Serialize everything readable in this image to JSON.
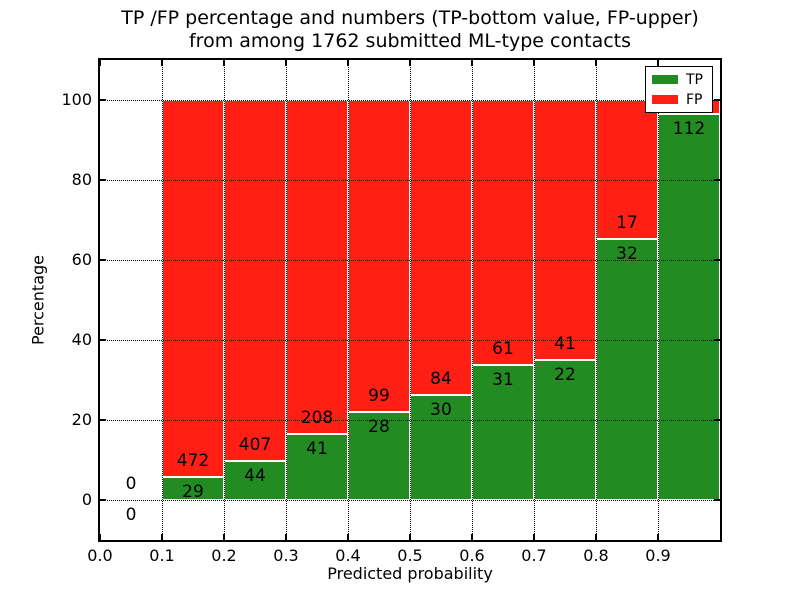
{
  "figure": {
    "background": "#ffffff",
    "text_color": "#000000"
  },
  "chart_data": {
    "type": "bar",
    "stacked": true,
    "title_line1": "TP /FP percentage and numbers (TP-bottom value, FP-upper)",
    "title_line2": "from among 1762 submitted ML-type contacts",
    "total_contacts": 1762,
    "xlabel": "Predicted probability",
    "ylabel": "Percentage",
    "xlim": [
      0.0,
      1.0
    ],
    "ylim": [
      -10,
      110
    ],
    "grid": true,
    "x_tick_labels": [
      "0.0",
      "0.1",
      "0.2",
      "0.3",
      "0.4",
      "0.5",
      "0.6",
      "0.7",
      "0.8",
      "0.9"
    ],
    "y_tick_labels": [
      "0",
      "20",
      "40",
      "60",
      "80",
      "100"
    ],
    "legend_position": "upper right",
    "series_colors": {
      "tp": "#228b22",
      "fp": "#ff1f14"
    },
    "legend": [
      {
        "key": "tp",
        "label": "TP"
      },
      {
        "key": "fp",
        "label": "FP"
      }
    ],
    "bins": [
      {
        "range": [
          0.0,
          0.1
        ],
        "has_bar": false,
        "tp_count": 0,
        "fp_count": 0,
        "tp_label": "0",
        "fp_label": "0",
        "tp_pct": 0.0,
        "fp_pct": 0.0
      },
      {
        "range": [
          0.1,
          0.2
        ],
        "has_bar": true,
        "tp_count": 29,
        "fp_count": 472,
        "tp_label": "29",
        "fp_label": "472",
        "tp_pct": 5.79,
        "fp_pct": 94.21
      },
      {
        "range": [
          0.2,
          0.3
        ],
        "has_bar": true,
        "tp_count": 44,
        "fp_count": 407,
        "tp_label": "44",
        "fp_label": "407",
        "tp_pct": 9.76,
        "fp_pct": 90.24
      },
      {
        "range": [
          0.3,
          0.4
        ],
        "has_bar": true,
        "tp_count": 41,
        "fp_count": 208,
        "tp_label": "41",
        "fp_label": "208",
        "tp_pct": 16.47,
        "fp_pct": 83.53
      },
      {
        "range": [
          0.4,
          0.5
        ],
        "has_bar": true,
        "tp_count": 28,
        "fp_count": 99,
        "tp_label": "28",
        "fp_label": "99",
        "tp_pct": 22.05,
        "fp_pct": 77.95
      },
      {
        "range": [
          0.5,
          0.6
        ],
        "has_bar": true,
        "tp_count": 30,
        "fp_count": 84,
        "tp_label": "30",
        "fp_label": "84",
        "tp_pct": 26.32,
        "fp_pct": 73.68
      },
      {
        "range": [
          0.6,
          0.7
        ],
        "has_bar": true,
        "tp_count": 31,
        "fp_count": 61,
        "tp_label": "31",
        "fp_label": "61",
        "tp_pct": 33.7,
        "fp_pct": 66.3
      },
      {
        "range": [
          0.7,
          0.8
        ],
        "has_bar": true,
        "tp_count": 22,
        "fp_count": 41,
        "tp_label": "22",
        "fp_label": "41",
        "tp_pct": 34.92,
        "fp_pct": 65.08
      },
      {
        "range": [
          0.8,
          0.9
        ],
        "has_bar": true,
        "tp_count": 32,
        "fp_count": 17,
        "tp_label": "32",
        "fp_label": "17",
        "tp_pct": 65.31,
        "fp_pct": 34.69
      },
      {
        "range": [
          0.9,
          1.0
        ],
        "has_bar": true,
        "tp_count": 112,
        "fp_count": null,
        "tp_label": "112",
        "fp_label": "",
        "tp_pct": 96.55,
        "fp_pct": 3.45
      }
    ]
  }
}
